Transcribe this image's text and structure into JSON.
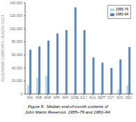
{
  "chart_data": {
    "type": "bar",
    "categories": [
      "JAN",
      "FEB",
      "MAR",
      "APR",
      "MAY",
      "JUNE",
      "JULY",
      "AUG",
      "SEPT",
      "OCT",
      "NOV",
      "DEC"
    ],
    "series": [
      {
        "name": "1955-79",
        "color": "#b8d8e8",
        "values": [
          14000,
          25000,
          28000,
          0,
          0,
          0,
          0,
          0,
          0,
          0,
          7000,
          13000
        ]
      },
      {
        "name": "1980-94",
        "color": "#5b85b5",
        "values": [
          68000,
          73000,
          82000,
          93000,
          98000,
          133000,
          98000,
          56000,
          48000,
          40000,
          53000,
          72000
        ]
      }
    ],
    "ylabel": "RESERVOIR CONTENTS, IN ACRE-FEET",
    "ylim": [
      0,
      140000
    ],
    "yticks": [
      0,
      {
        "value": 20000,
        "label": "20,000"
      },
      {
        "value": 40000,
        "label": "40,000"
      },
      {
        "value": 60000,
        "label": "60,000"
      },
      {
        "value": 80000,
        "label": "80,000"
      },
      {
        "value": 100000,
        "label": "100,000"
      },
      {
        "value": 120000,
        "label": "120,000"
      },
      {
        "value": 140000,
        "label": "140,000"
      }
    ],
    "legend": "upper right",
    "grid": false,
    "annotations": [
      "Figure 8.  Median end-of-month contents of",
      "John Martin Reservoir, 1955–79 and 1980–94."
    ]
  }
}
